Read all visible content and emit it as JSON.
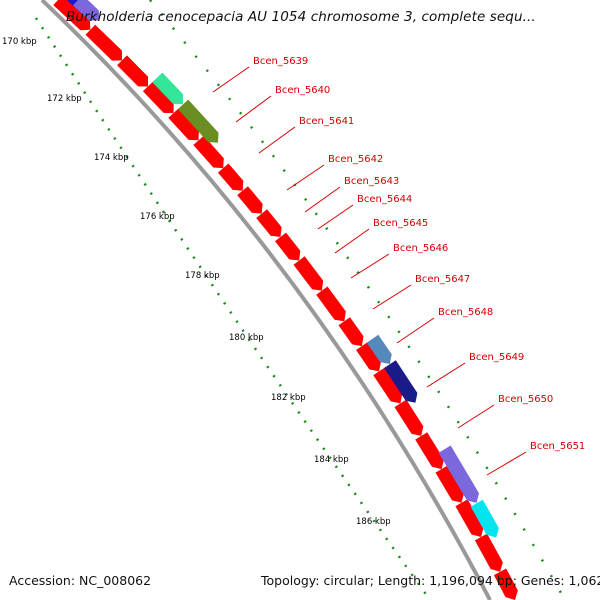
{
  "map": {
    "title": "Burkholderia cenocepacia AU 1054 chromosome 3, complete sequ...",
    "accession_text": "Accession: NC_008062",
    "summary_text": "Topology: circular; Length: 1,196,094 bp; Genes: 1,062",
    "colors": {
      "forward_gene": "#ff0000",
      "backbone": "#999999",
      "gc_ticks": "#1a8c1a",
      "label": "#d40000",
      "label_line": "#d40000"
    },
    "scale_ticks": [
      "170 kbp",
      "172 kbp",
      "174 kbp",
      "176 kbp",
      "178 kbp",
      "180 kbp",
      "182 kbp",
      "184 kbp",
      "186 kbp"
    ],
    "gene_labels": [
      "Bcen_5639",
      "Bcen_5640",
      "Bcen_5641",
      "Bcen_5642",
      "Bcen_5643",
      "Bcen_5644",
      "Bcen_5645",
      "Bcen_5646",
      "Bcen_5647",
      "Bcen_5648",
      "Bcen_5649",
      "Bcen_5650",
      "Bcen_5651"
    ],
    "feature_colors": {
      "Bcen_5639": "#33e699",
      "Bcen_5640": "#6b8e23",
      "Bcen_5648": "#5588bb",
      "Bcen_5649": "#1a1a88",
      "Bcen_5651_a": "#7b68dd",
      "Bcen_5651_b": "#00e5ee",
      "top_blue": "#1a1acc",
      "top_purple": "#7b68dd"
    }
  }
}
